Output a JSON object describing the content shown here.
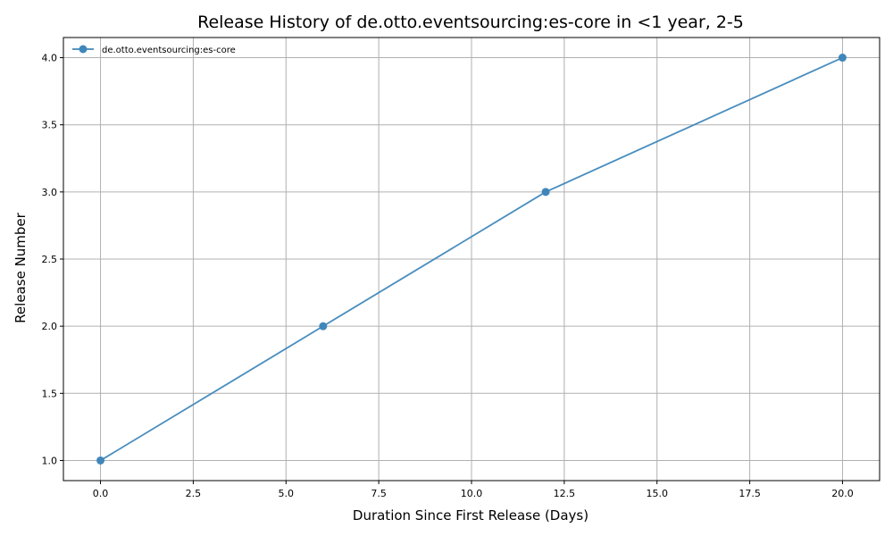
{
  "chart_data": {
    "type": "line",
    "title": "Release History of de.otto.eventsourcing:es-core in <1 year, 2-5",
    "xlabel": "Duration Since First Release (Days)",
    "ylabel": "Release Number",
    "xlim": [
      -1,
      21
    ],
    "ylim": [
      0.85,
      4.15
    ],
    "xticks": [
      0.0,
      2.5,
      5.0,
      7.5,
      10.0,
      12.5,
      15.0,
      17.5,
      20.0
    ],
    "yticks": [
      1.0,
      1.5,
      2.0,
      2.5,
      3.0,
      3.5,
      4.0
    ],
    "grid": true,
    "legend_position": "top-left",
    "series": [
      {
        "name": "de.otto.eventsourcing:es-core",
        "color": "#3f87bb",
        "marker": "circle",
        "x": [
          0,
          6,
          12,
          20
        ],
        "y": [
          1,
          2,
          3,
          4
        ]
      }
    ]
  }
}
